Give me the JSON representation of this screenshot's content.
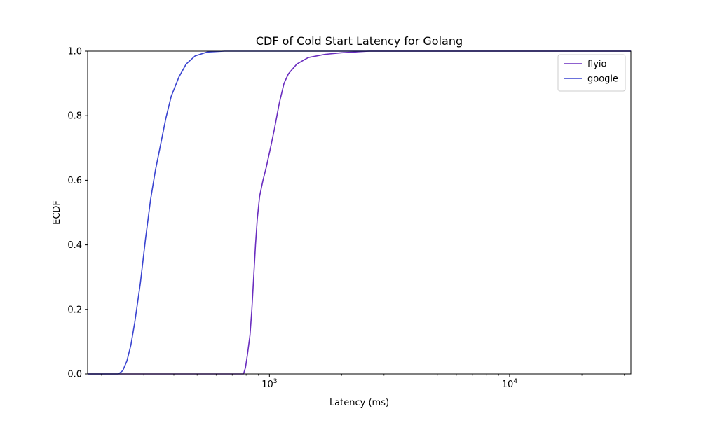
{
  "chart_data": {
    "type": "line",
    "title": "CDF of Cold Start Latency for Golang",
    "xlabel": "Latency (ms)",
    "ylabel": "ECDF",
    "xscale": "log",
    "xlim": [
      175,
      32000
    ],
    "ylim": [
      0.0,
      1.0
    ],
    "x_major_ticks": [
      {
        "value": 1000,
        "base": "10",
        "exp": "3"
      },
      {
        "value": 10000,
        "base": "10",
        "exp": "4"
      }
    ],
    "y_ticks": [
      {
        "value": 0.0,
        "label": "0.0"
      },
      {
        "value": 0.2,
        "label": "0.2"
      },
      {
        "value": 0.4,
        "label": "0.4"
      },
      {
        "value": 0.6,
        "label": "0.6"
      },
      {
        "value": 0.8,
        "label": "0.8"
      },
      {
        "value": 1.0,
        "label": "1.0"
      }
    ],
    "grid": false,
    "legend_position": "top-right",
    "series": [
      {
        "name": "flyio",
        "color": "#6a2dbf",
        "points": [
          [
            175,
            0.0
          ],
          [
            780,
            0.0
          ],
          [
            795,
            0.02
          ],
          [
            810,
            0.06
          ],
          [
            830,
            0.12
          ],
          [
            845,
            0.2
          ],
          [
            860,
            0.3
          ],
          [
            875,
            0.4
          ],
          [
            890,
            0.48
          ],
          [
            910,
            0.55
          ],
          [
            940,
            0.6
          ],
          [
            970,
            0.64
          ],
          [
            1010,
            0.7
          ],
          [
            1050,
            0.76
          ],
          [
            1100,
            0.84
          ],
          [
            1150,
            0.9
          ],
          [
            1200,
            0.93
          ],
          [
            1300,
            0.96
          ],
          [
            1450,
            0.98
          ],
          [
            1700,
            0.99
          ],
          [
            2000,
            0.995
          ],
          [
            2600,
            1.0
          ],
          [
            32000,
            1.0
          ]
        ]
      },
      {
        "name": "google",
        "color": "#3a44d0",
        "points": [
          [
            175,
            0.0
          ],
          [
            235,
            0.0
          ],
          [
            245,
            0.01
          ],
          [
            255,
            0.04
          ],
          [
            265,
            0.09
          ],
          [
            275,
            0.16
          ],
          [
            290,
            0.28
          ],
          [
            305,
            0.42
          ],
          [
            320,
            0.54
          ],
          [
            335,
            0.63
          ],
          [
            350,
            0.7
          ],
          [
            370,
            0.79
          ],
          [
            390,
            0.86
          ],
          [
            420,
            0.92
          ],
          [
            450,
            0.96
          ],
          [
            490,
            0.985
          ],
          [
            550,
            0.997
          ],
          [
            650,
            1.0
          ],
          [
            32000,
            1.0
          ]
        ]
      }
    ]
  }
}
